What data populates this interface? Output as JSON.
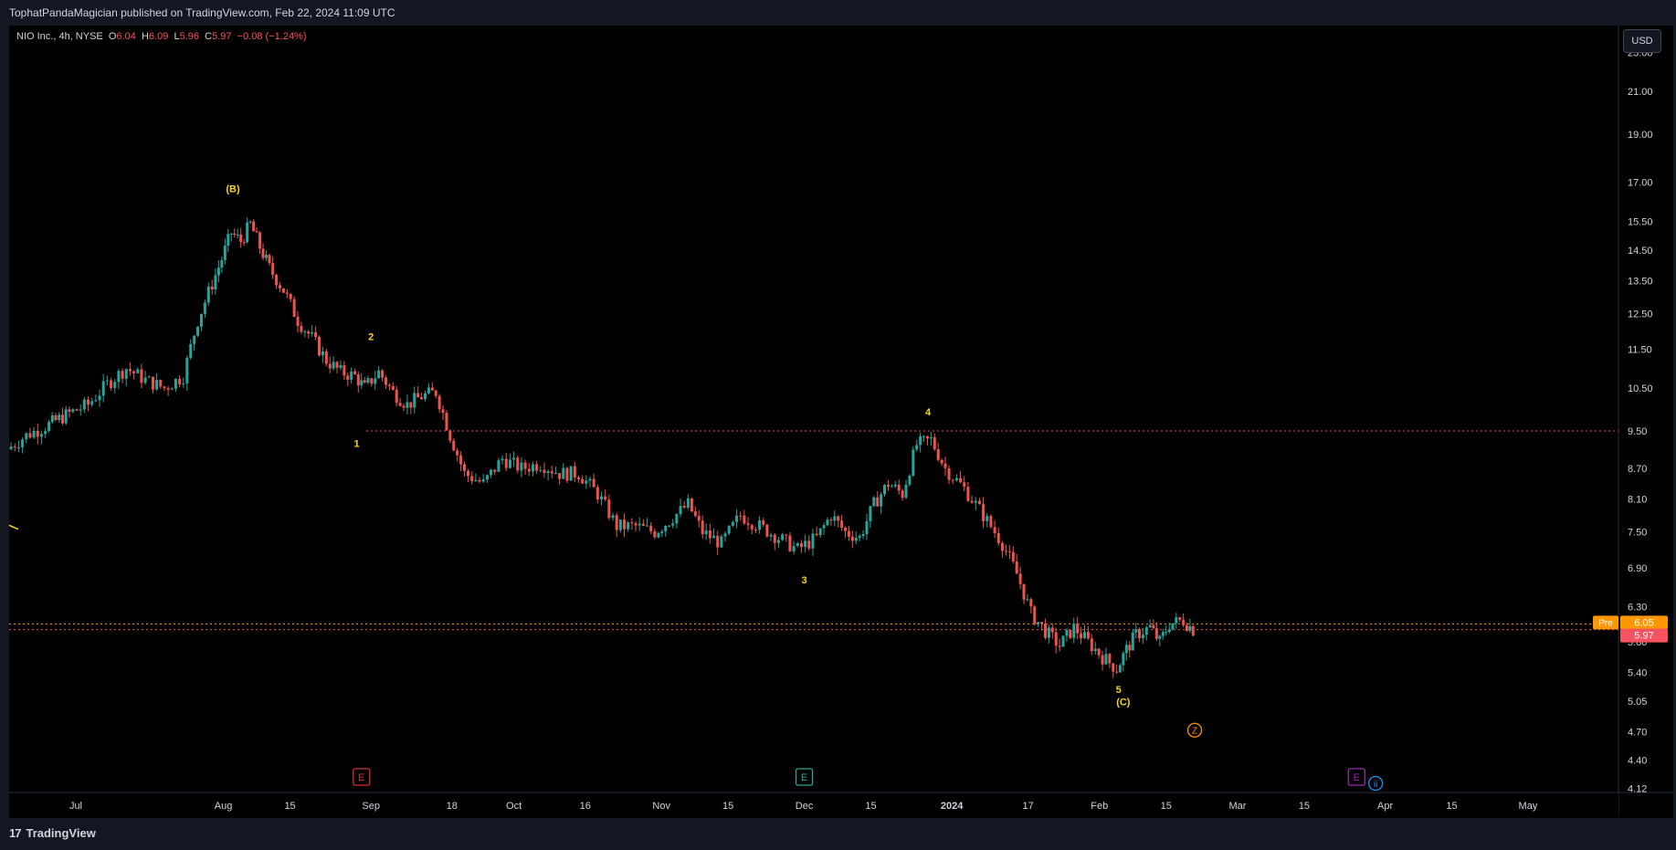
{
  "header": {
    "published": "TophatPandaMagician published on TradingView.com, Feb 22, 2024 11:09 UTC"
  },
  "legend": {
    "symbol": "NIO Inc., 4h, NYSE",
    "o_label": "O",
    "o_value": "6.04",
    "h_label": "H",
    "h_value": "6.09",
    "l_label": "L",
    "l_value": "5.96",
    "c_label": "C",
    "c_value": "5.97",
    "change": "−0.08 (−1.24%)"
  },
  "currency_button": "USD",
  "footer": {
    "brand": "TradingView",
    "logo_glyph": "17"
  },
  "colors": {
    "up": "#26a69a",
    "down": "#ef5350",
    "wave": "#f9d71c",
    "level": "#ef5350",
    "pre": "#ff9800"
  },
  "chart_data": {
    "type": "candlestick",
    "symbol": "NIO",
    "interval": "4h",
    "y_scale": "log",
    "ylim": [
      4.08,
      24.5
    ],
    "xlim": [
      "2023-06-17",
      "2024-05-20"
    ],
    "y_ticks": [
      "23.00",
      "21.00",
      "19.00",
      "17.00",
      "15.50",
      "14.50",
      "13.50",
      "12.50",
      "11.50",
      "10.50",
      "9.50",
      "8.70",
      "8.10",
      "7.50",
      "6.90",
      "6.30",
      "5.80",
      "5.40",
      "5.05",
      "4.70",
      "4.40",
      "4.12"
    ],
    "x_ticks": [
      {
        "label": "Jul",
        "date": "2023-07-01"
      },
      {
        "label": "Aug",
        "date": "2023-08-01"
      },
      {
        "label": "15",
        "date": "2023-08-15"
      },
      {
        "label": "Sep",
        "date": "2023-09-01"
      },
      {
        "label": "18",
        "date": "2023-09-18"
      },
      {
        "label": "Oct",
        "date": "2023-10-01"
      },
      {
        "label": "16",
        "date": "2023-10-16"
      },
      {
        "label": "Nov",
        "date": "2023-11-01"
      },
      {
        "label": "15",
        "date": "2023-11-15"
      },
      {
        "label": "Dec",
        "date": "2023-12-01"
      },
      {
        "label": "15",
        "date": "2023-12-15"
      },
      {
        "label": "2024",
        "date": "2024-01-01"
      },
      {
        "label": "17",
        "date": "2024-01-17"
      },
      {
        "label": "Feb",
        "date": "2024-02-01"
      },
      {
        "label": "15",
        "date": "2024-02-15"
      },
      {
        "label": "Mar",
        "date": "2024-03-01"
      },
      {
        "label": "15",
        "date": "2024-03-15"
      },
      {
        "label": "Apr",
        "date": "2024-04-01"
      },
      {
        "label": "15",
        "date": "2024-04-15"
      },
      {
        "label": "May",
        "date": "2024-05-01"
      }
    ],
    "path": [
      [
        "2023-06-17",
        9.1
      ],
      [
        "2023-06-21",
        9.4
      ],
      [
        "2023-06-25",
        9.6
      ],
      [
        "2023-06-30",
        9.9
      ],
      [
        "2023-07-04",
        10.1
      ],
      [
        "2023-07-08",
        10.6
      ],
      [
        "2023-07-12",
        11.0
      ],
      [
        "2023-07-16",
        10.7
      ],
      [
        "2023-07-20",
        10.5
      ],
      [
        "2023-07-24",
        10.8
      ],
      [
        "2023-07-27",
        12.3
      ],
      [
        "2023-07-30",
        13.4
      ],
      [
        "2023-08-01",
        14.2
      ],
      [
        "2023-08-03",
        15.1
      ],
      [
        "2023-08-05",
        14.8
      ],
      [
        "2023-08-07",
        15.4
      ],
      [
        "2023-08-09",
        14.6
      ],
      [
        "2023-08-11",
        13.9
      ],
      [
        "2023-08-14",
        13.2
      ],
      [
        "2023-08-17",
        12.3
      ],
      [
        "2023-08-20",
        11.8
      ],
      [
        "2023-08-23",
        11.2
      ],
      [
        "2023-08-26",
        10.9
      ],
      [
        "2023-08-29",
        10.8
      ],
      [
        "2023-08-31",
        10.5
      ],
      [
        "2023-09-03",
        10.9
      ],
      [
        "2023-09-06",
        10.4
      ],
      [
        "2023-09-09",
        10.1
      ],
      [
        "2023-09-12",
        10.3
      ],
      [
        "2023-09-15",
        10.4
      ],
      [
        "2023-09-18",
        9.4
      ],
      [
        "2023-09-21",
        8.6
      ],
      [
        "2023-09-25",
        8.4
      ],
      [
        "2023-09-29",
        8.9
      ],
      [
        "2023-10-03",
        8.7
      ],
      [
        "2023-10-07",
        8.8
      ],
      [
        "2023-10-11",
        8.6
      ],
      [
        "2023-10-15",
        8.6
      ],
      [
        "2023-10-19",
        8.2
      ],
      [
        "2023-10-23",
        7.6
      ],
      [
        "2023-10-27",
        7.6
      ],
      [
        "2023-10-31",
        7.5
      ],
      [
        "2023-11-03",
        7.7
      ],
      [
        "2023-11-07",
        8.0
      ],
      [
        "2023-11-10",
        7.5
      ],
      [
        "2023-11-14",
        7.3
      ],
      [
        "2023-11-18",
        7.8
      ],
      [
        "2023-11-22",
        7.6
      ],
      [
        "2023-11-26",
        7.4
      ],
      [
        "2023-11-30",
        7.2
      ],
      [
        "2023-12-04",
        7.4
      ],
      [
        "2023-12-07",
        7.8
      ],
      [
        "2023-12-10",
        7.5
      ],
      [
        "2023-12-13",
        7.4
      ],
      [
        "2023-12-16",
        8.0
      ],
      [
        "2023-12-19",
        8.4
      ],
      [
        "2023-12-22",
        8.2
      ],
      [
        "2023-12-25",
        9.2
      ],
      [
        "2023-12-28",
        9.3
      ],
      [
        "2023-12-31",
        8.7
      ],
      [
        "2024-01-04",
        8.3
      ],
      [
        "2024-01-08",
        7.8
      ],
      [
        "2024-01-12",
        7.3
      ],
      [
        "2024-01-15",
        6.8
      ],
      [
        "2024-01-18",
        6.2
      ],
      [
        "2024-01-21",
        5.95
      ],
      [
        "2024-01-24",
        5.75
      ],
      [
        "2024-01-27",
        6.0
      ],
      [
        "2024-01-30",
        5.8
      ],
      [
        "2024-02-02",
        5.6
      ],
      [
        "2024-02-05",
        5.45
      ],
      [
        "2024-02-07",
        5.7
      ],
      [
        "2024-02-09",
        5.9
      ],
      [
        "2024-02-12",
        6.0
      ],
      [
        "2024-02-14",
        5.8
      ],
      [
        "2024-02-16",
        6.05
      ],
      [
        "2024-02-19",
        6.1
      ],
      [
        "2024-02-21",
        5.97
      ]
    ],
    "horizontal_levels": [
      {
        "price": 9.5,
        "color": "#ef5350",
        "style": "dotted",
        "from": "2023-08-31"
      },
      {
        "price": 6.05,
        "color": "#ff9800",
        "style": "dotted",
        "from": "2023-06-17"
      },
      {
        "price": 5.97,
        "color": "#ef5350",
        "style": "dotted",
        "from": "2023-06-17"
      }
    ],
    "price_labels": [
      {
        "label": "Pre",
        "value": "6.05",
        "price": 6.05,
        "color": "#ff9800"
      },
      {
        "value": "5.97",
        "price": 5.97,
        "color": "#f7525f"
      }
    ],
    "wave_labels": [
      {
        "text": "(B)",
        "date": "2023-08-03",
        "price": 16.6,
        "color": "#f9d71c"
      },
      {
        "text": "1",
        "date": "2023-08-29",
        "price": 9.15,
        "color": "#f9d71c"
      },
      {
        "text": "2",
        "date": "2023-09-01",
        "price": 11.75,
        "color": "#f9d71c"
      },
      {
        "text": "3",
        "date": "2023-12-01",
        "price": 6.65,
        "color": "#f9d71c"
      },
      {
        "text": "4",
        "date": "2023-12-27",
        "price": 9.85,
        "color": "#f9d71c"
      },
      {
        "text": "5",
        "date": "2024-02-05",
        "price": 5.15,
        "color": "#f9d71c"
      },
      {
        "text": "(C)",
        "date": "2024-02-06",
        "price": 5.0,
        "color": "#f9d71c"
      }
    ],
    "event_markers": [
      {
        "text": "E",
        "date": "2023-08-30",
        "color": "#d32f2f"
      },
      {
        "text": "E",
        "date": "2023-12-01",
        "color": "#26a69a"
      },
      {
        "text": "E",
        "date": "2024-03-26",
        "color": "#9c27b0"
      }
    ],
    "dividend_markers": [
      {
        "text": "Z",
        "date": "2024-02-21",
        "price": 4.72,
        "color": "#ff9800"
      },
      {
        "text": "ii",
        "date": "2024-03-30",
        "color": "#2196f3"
      }
    ]
  }
}
